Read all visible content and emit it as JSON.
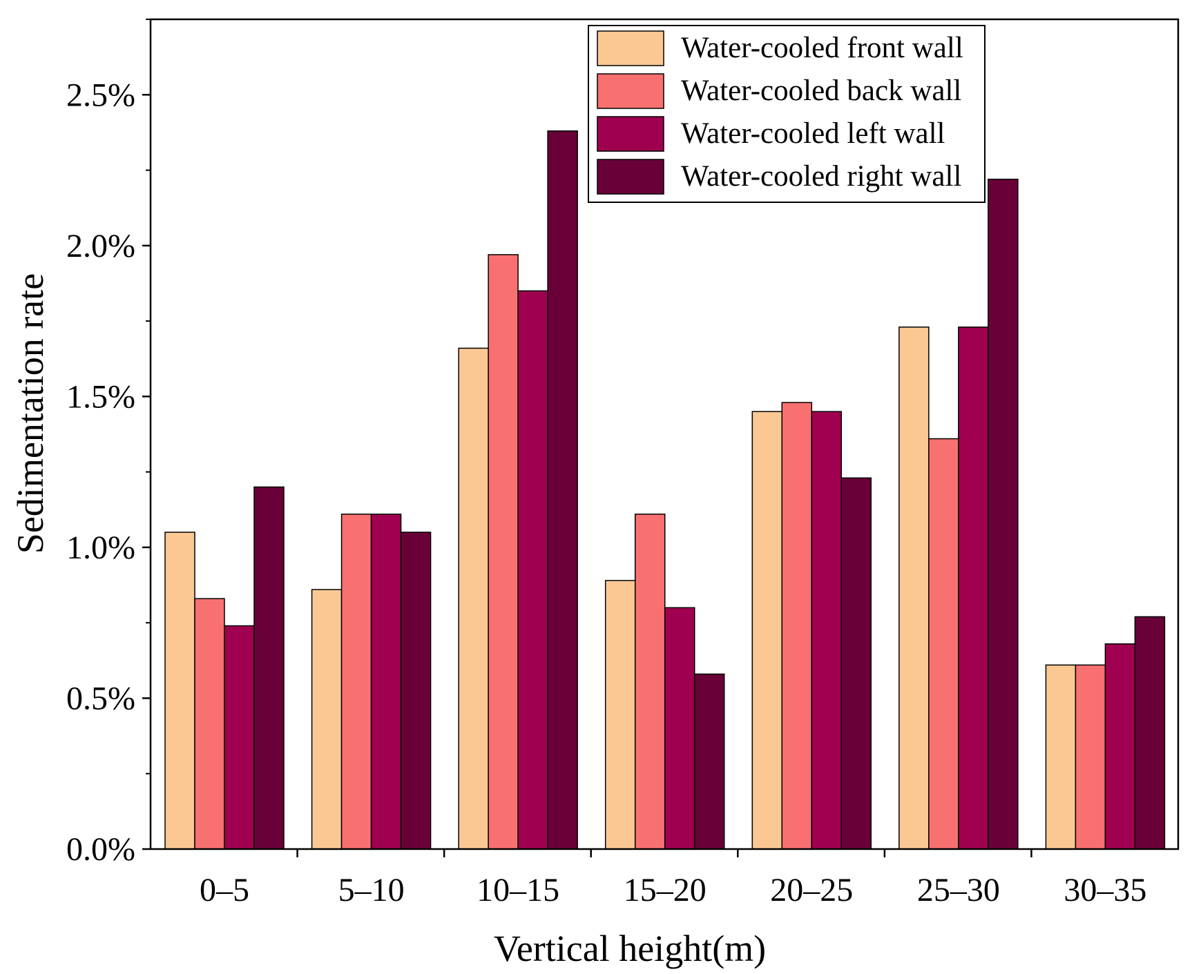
{
  "chart_data": {
    "type": "bar",
    "title": "",
    "xlabel": "Vertical height(m)",
    "ylabel": "Sedimentation rate",
    "categories": [
      "0–5",
      "5–10",
      "10–15",
      "15–20",
      "20–25",
      "25–30",
      "30–35"
    ],
    "ylim": [
      0,
      0.0275
    ],
    "yticks": [
      0.0,
      0.005,
      0.01,
      0.015,
      0.02,
      0.025
    ],
    "ytick_labels": [
      "0.0%",
      "0.5%",
      "1.0%",
      "1.5%",
      "2.0%",
      "2.5%"
    ],
    "grid": false,
    "legend_position": "top-right",
    "series": [
      {
        "name": "Water-cooled front wall",
        "color": "#FBC894",
        "values": [
          0.0105,
          0.0086,
          0.0166,
          0.0089,
          0.0145,
          0.0173,
          0.0061
        ]
      },
      {
        "name": "Water-cooled back wall",
        "color": "#F87070",
        "values": [
          0.0083,
          0.0111,
          0.0197,
          0.0111,
          0.0148,
          0.0136,
          0.0061
        ]
      },
      {
        "name": "Water-cooled left wall",
        "color": "#A00050",
        "values": [
          0.0074,
          0.0111,
          0.0185,
          0.008,
          0.0145,
          0.0173,
          0.0068
        ]
      },
      {
        "name": "Water-cooled right wall",
        "color": "#6A0038",
        "values": [
          0.012,
          0.0105,
          0.0238,
          0.0058,
          0.0123,
          0.0222,
          0.0077
        ]
      }
    ]
  }
}
